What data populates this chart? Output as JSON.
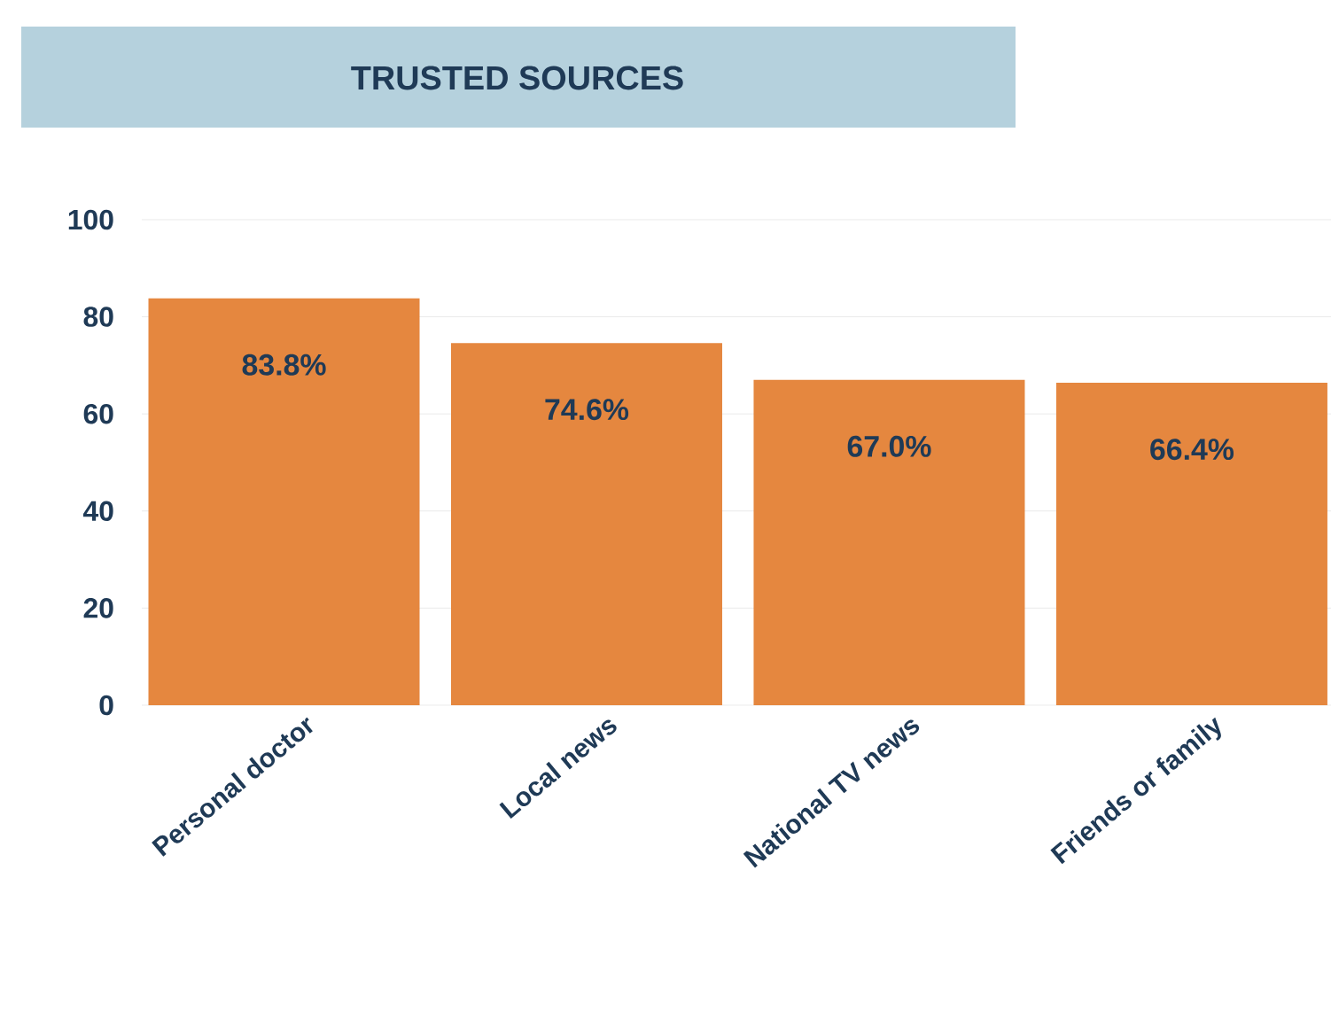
{
  "chart_data": {
    "type": "bar",
    "title": "TRUSTED SOURCES",
    "categories": [
      "Personal doctor",
      "Local news",
      "National TV news",
      "Friends or family"
    ],
    "values": [
      83.8,
      74.6,
      67.0,
      66.4
    ],
    "value_labels": [
      "83.8%",
      "74.6%",
      "67.0%",
      "66.4%"
    ],
    "color": "#e5873f",
    "ylim": [
      0,
      100
    ],
    "yticks": [
      0,
      20,
      40,
      60,
      80,
      100
    ],
    "grid": "y"
  }
}
